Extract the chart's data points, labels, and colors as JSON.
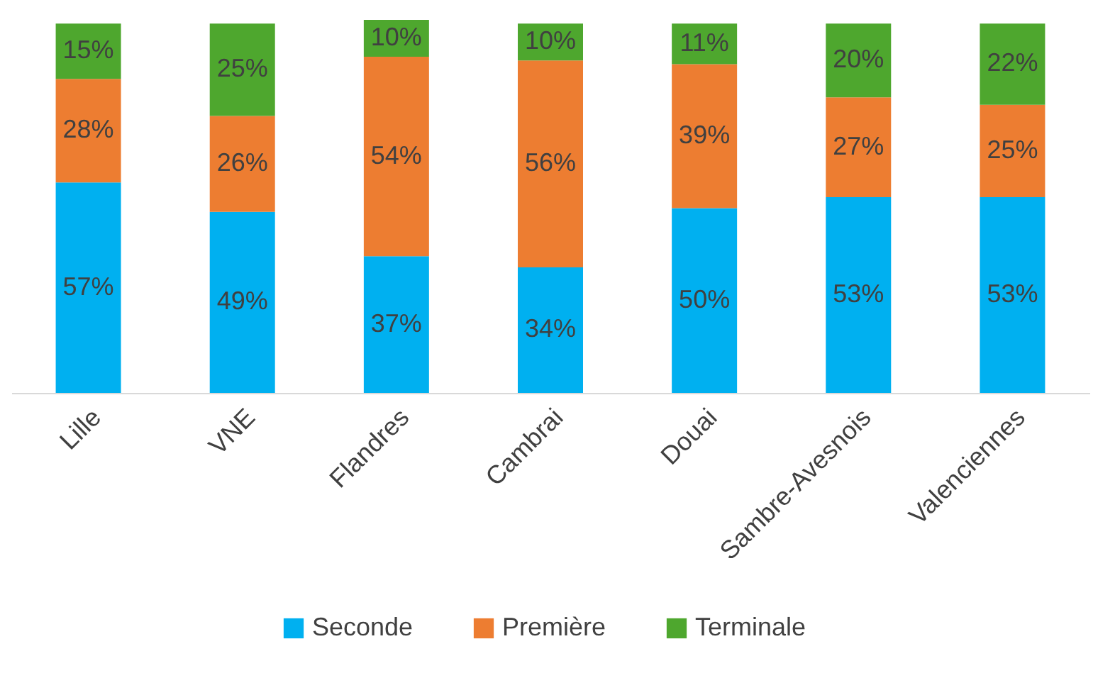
{
  "chart_data": {
    "type": "bar",
    "stacked": true,
    "legend": "bottom",
    "categories": [
      "Lille",
      "VNE",
      "Flandres",
      "Cambrai",
      "Douai",
      "Sambre-Avesnois",
      "Valenciennes"
    ],
    "series": [
      {
        "name": "Seconde",
        "color": "#00b0f0",
        "values": [
          57,
          49,
          37,
          34,
          50,
          53,
          53
        ],
        "value_labels": [
          "57%",
          "49%",
          "37%",
          "34%",
          "50%",
          "53%",
          "53%"
        ]
      },
      {
        "name": "Première",
        "color": "#ed7d31",
        "values": [
          28,
          26,
          54,
          56,
          39,
          27,
          25
        ],
        "value_labels": [
          "28%",
          "26%",
          "54%",
          "56%",
          "39%",
          "27%",
          "25%"
        ]
      },
      {
        "name": "Terminale",
        "color": "#4ea72e",
        "values": [
          15,
          25,
          10,
          10,
          11,
          20,
          22
        ],
        "value_labels": [
          "15%",
          "25%",
          "10%",
          "10%",
          "11%",
          "20%",
          "22%"
        ]
      }
    ]
  }
}
